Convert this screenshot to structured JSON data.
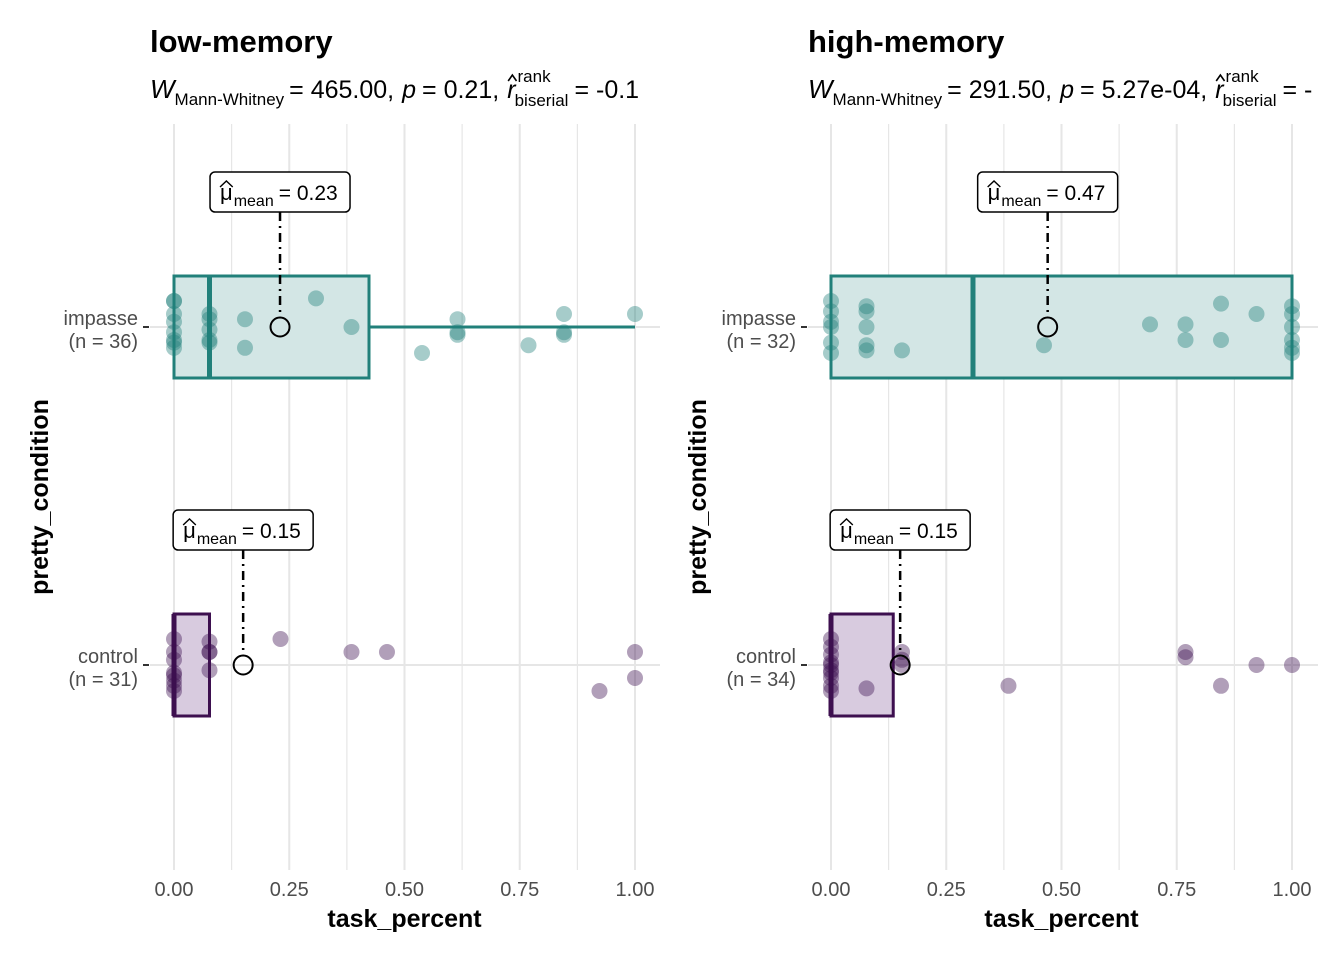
{
  "colors": {
    "impasse": "#21807a",
    "control": "#3d0f4f",
    "impasse_fill": "#d3e6e5",
    "control_fill": "#d8cbdf",
    "grid": "#e6e6e6"
  },
  "chart_data": [
    {
      "type": "scatter",
      "title": "low-memory",
      "subtitle": {
        "w_label": "W",
        "w_sub": "Mann-Whitney",
        "w_value": "= 465.00,",
        "p_label": "p",
        "p_value": "= 0.21,",
        "r_label": "r",
        "r_sup": "rank",
        "r_sub": "biserial",
        "r_value": "= -0.1"
      },
      "xlabel": "task_percent",
      "ylabel": "pretty_condition",
      "xlim": [
        0,
        1
      ],
      "x_ticks": [
        "0.00",
        "0.25",
        "0.50",
        "0.75",
        "1.00"
      ],
      "x_tick_values": [
        0,
        0.25,
        0.5,
        0.75,
        1.0
      ],
      "categories": [
        {
          "name": "impasse",
          "label_line1": "impasse",
          "label_line2": "(n = 36)",
          "box": {
            "q1": 0.0,
            "median": 0.077,
            "q3": 0.423,
            "whisker_low": 0.0,
            "whisker_high": 1.0
          },
          "mean": 0.23,
          "mean_label_value": "= 0.23",
          "points": [
            [
              0,
              0.1
            ],
            [
              0,
              0.05
            ],
            [
              0,
              0.02
            ],
            [
              0,
              -0.02
            ],
            [
              0,
              -0.06
            ],
            [
              0,
              -0.08
            ],
            [
              0,
              0.1
            ],
            [
              0,
              -0.05
            ],
            [
              0.077,
              0.05
            ],
            [
              0.077,
              0.03
            ],
            [
              0.077,
              -0.01
            ],
            [
              0.077,
              -0.05
            ],
            [
              0.077,
              -0.06
            ],
            [
              0.154,
              0.03
            ],
            [
              0.154,
              -0.08
            ],
            [
              0.308,
              0.11
            ],
            [
              0.385,
              0.0
            ],
            [
              0.538,
              -0.1
            ],
            [
              0.615,
              0.03
            ],
            [
              0.615,
              -0.02
            ],
            [
              0.615,
              -0.03
            ],
            [
              0.769,
              -0.07
            ],
            [
              0.846,
              0.05
            ],
            [
              0.846,
              -0.02
            ],
            [
              0.846,
              -0.03
            ],
            [
              1.0,
              0.05
            ]
          ]
        },
        {
          "name": "control",
          "label_line1": "control",
          "label_line2": "(n = 31)",
          "box": {
            "q1": 0.0,
            "median": 0.0,
            "q3": 0.077,
            "whisker_low": 0.0,
            "whisker_high": 0.077
          },
          "mean": 0.15,
          "mean_label_value": "= 0.15",
          "points": [
            [
              0,
              0.1
            ],
            [
              0,
              0.05
            ],
            [
              0,
              0.02
            ],
            [
              0,
              -0.03
            ],
            [
              0,
              -0.06
            ],
            [
              0,
              -0.08
            ],
            [
              0,
              -0.1
            ],
            [
              0,
              -0.04
            ],
            [
              0.077,
              0.09
            ],
            [
              0.077,
              0.05
            ],
            [
              0.077,
              0.05
            ],
            [
              0.077,
              -0.02
            ],
            [
              0.231,
              0.1
            ],
            [
              0.385,
              0.05
            ],
            [
              0.462,
              0.05
            ],
            [
              0.923,
              -0.1
            ],
            [
              1.0,
              0.05
            ],
            [
              1.0,
              -0.05
            ]
          ]
        }
      ]
    },
    {
      "type": "scatter",
      "title": "high-memory",
      "subtitle": {
        "w_label": "W",
        "w_sub": "Mann-Whitney",
        "w_value": "= 291.50,",
        "p_label": "p",
        "p_value": "= 5.27e-04,",
        "r_label": "r",
        "r_sup": "rank",
        "r_sub": "biserial",
        "r_value": "= -"
      },
      "xlabel": "task_percent",
      "ylabel": "pretty_condition",
      "xlim": [
        0,
        1
      ],
      "x_ticks": [
        "0.00",
        "0.25",
        "0.50",
        "0.75",
        "1.00"
      ],
      "x_tick_values": [
        0,
        0.25,
        0.5,
        0.75,
        1.0
      ],
      "categories": [
        {
          "name": "impasse",
          "label_line1": "impasse",
          "label_line2": "(n = 32)",
          "box": {
            "q1": 0.0,
            "median": 0.308,
            "q3": 1.0,
            "whisker_low": 0.0,
            "whisker_high": 1.0
          },
          "mean": 0.47,
          "mean_label_value": "= 0.47",
          "points": [
            [
              0,
              0.1
            ],
            [
              0,
              0.06
            ],
            [
              0,
              0.0
            ],
            [
              0,
              -0.06
            ],
            [
              0,
              -0.1
            ],
            [
              0,
              0.02
            ],
            [
              0.077,
              0.08
            ],
            [
              0.077,
              0.06
            ],
            [
              0.077,
              0.0
            ],
            [
              0.077,
              -0.07
            ],
            [
              0.077,
              -0.09
            ],
            [
              0.154,
              -0.09
            ],
            [
              0.462,
              -0.07
            ],
            [
              0.692,
              0.01
            ],
            [
              0.769,
              0.01
            ],
            [
              0.769,
              -0.05
            ],
            [
              0.846,
              0.09
            ],
            [
              0.846,
              -0.05
            ],
            [
              0.923,
              0.05
            ],
            [
              1.0,
              0.08
            ],
            [
              1.0,
              0.05
            ],
            [
              1.0,
              0.0
            ],
            [
              1.0,
              -0.05
            ],
            [
              1.0,
              -0.08
            ],
            [
              1.0,
              -0.1
            ]
          ]
        },
        {
          "name": "control",
          "label_line1": "control",
          "label_line2": "(n = 34)",
          "box": {
            "q1": 0.0,
            "median": 0.0,
            "q3": 0.135,
            "whisker_low": 0.0,
            "whisker_high": 0.135
          },
          "mean": 0.15,
          "mean_label_value": "= 0.15",
          "points": [
            [
              0,
              0.1
            ],
            [
              0,
              0.07
            ],
            [
              0,
              0.04
            ],
            [
              0,
              0.01
            ],
            [
              0,
              -0.02
            ],
            [
              0,
              -0.05
            ],
            [
              0,
              -0.08
            ],
            [
              0,
              -0.1
            ],
            [
              0,
              0.0
            ],
            [
              0,
              -0.03
            ],
            [
              0.077,
              -0.09
            ],
            [
              0.154,
              0.05
            ],
            [
              0.154,
              0.02
            ],
            [
              0.154,
              0.0
            ],
            [
              0.385,
              -0.08
            ],
            [
              0.769,
              0.05
            ],
            [
              0.769,
              0.03
            ],
            [
              0.846,
              -0.08
            ],
            [
              0.923,
              0.0
            ],
            [
              1.0,
              0.0
            ]
          ]
        }
      ]
    }
  ]
}
